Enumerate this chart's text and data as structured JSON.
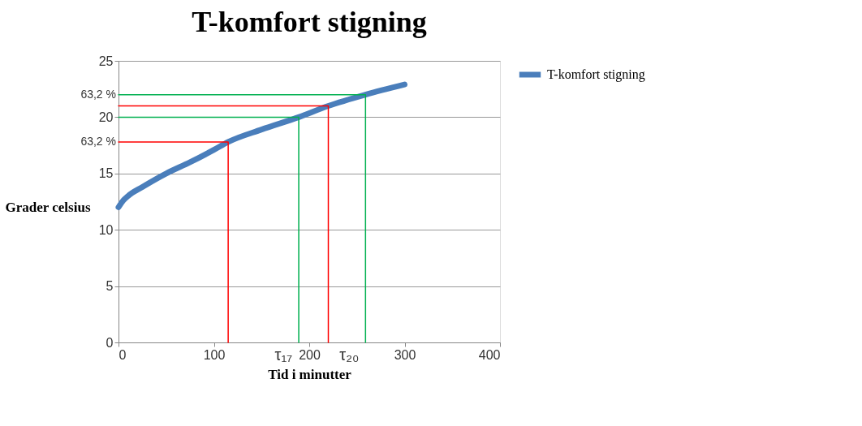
{
  "chart_data": {
    "type": "line",
    "title": "T-komfort stigning",
    "xlabel": "Tid i minutter",
    "ylabel": "Grader celsius",
    "xlim": [
      0,
      400
    ],
    "xticks": [
      0,
      100,
      200,
      300,
      400
    ],
    "ylim": [
      0,
      25
    ],
    "yticks": [
      0,
      5,
      10,
      15,
      20,
      25
    ],
    "grid": "y",
    "legend": "right",
    "marker": "none",
    "line_style": "solid",
    "series": [
      {
        "name": "T-komfort stigning",
        "color": "#4a7ebb",
        "x": [
          0,
          5,
          10,
          25,
          50,
          75,
          100,
          115,
          150,
          189,
          220,
          259,
          300
        ],
        "values": [
          12,
          12.6,
          13.0,
          13.8,
          15.0,
          16.0,
          17.1,
          17.8,
          18.9,
          20,
          21,
          22,
          22.9
        ]
      },
      {
        "type": "line",
        "color": "#ff0000",
        "x": [
          0,
          115,
          115
        ],
        "values": [
          17.8,
          17.8,
          0
        ]
      },
      {
        "type": "line",
        "color": "#ff0000",
        "x": [
          0,
          220,
          220
        ],
        "values": [
          21,
          21,
          0
        ]
      },
      {
        "type": "line",
        "color": "#00b050",
        "x": [
          0,
          189,
          189
        ],
        "values": [
          20,
          20,
          0
        ]
      },
      {
        "type": "line",
        "color": "#00b050",
        "x": [
          0,
          259,
          259
        ],
        "values": [
          22,
          22,
          0
        ]
      }
    ],
    "annotations": [
      {
        "text": "63,2 %",
        "x": 0,
        "y": 17.8
      },
      {
        "text": "63,2 %",
        "x": 0,
        "y": 22
      },
      {
        "text": "τ₁₇",
        "x": 189,
        "y": 0
      },
      {
        "text": "τ₂₀",
        "x": 259,
        "y": 0
      }
    ]
  }
}
